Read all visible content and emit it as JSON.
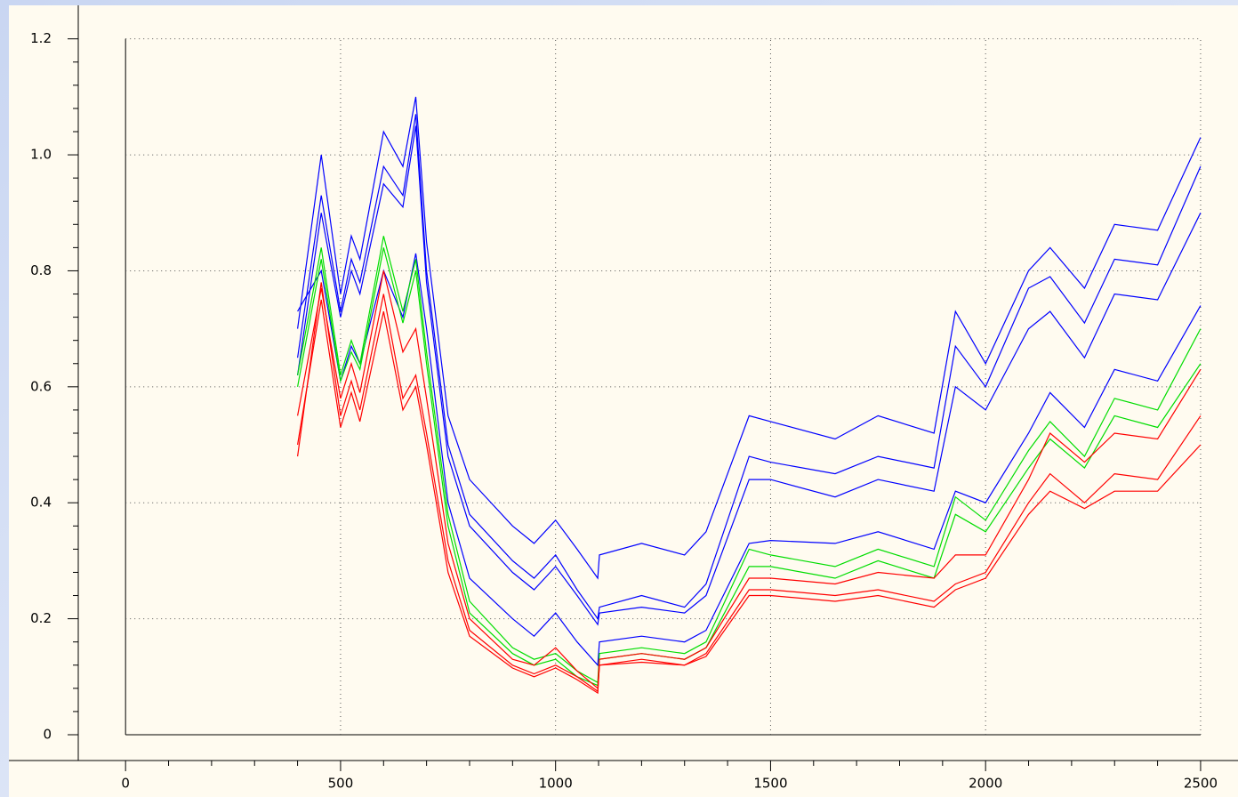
{
  "chart_data": {
    "type": "line",
    "x": [
      400,
      455,
      500,
      525,
      545,
      600,
      645,
      675,
      700,
      750,
      800,
      900,
      950,
      1000,
      1050,
      1098,
      1102,
      1200,
      1300,
      1350,
      1450,
      1500,
      1650,
      1750,
      1880,
      1930,
      2000,
      2100,
      2150,
      2230,
      2300,
      2400,
      2500
    ],
    "series": [
      {
        "color": "#0000ff",
        "values": [
          0.7,
          1.0,
          0.76,
          0.86,
          0.82,
          1.04,
          0.98,
          1.1,
          0.85,
          0.55,
          0.44,
          0.36,
          0.33,
          0.37,
          0.32,
          0.27,
          0.31,
          0.33,
          0.31,
          0.35,
          0.55,
          0.54,
          0.51,
          0.55,
          0.52,
          0.73,
          0.64,
          0.8,
          0.84,
          0.77,
          0.88,
          0.87,
          1.03
        ]
      },
      {
        "color": "#0000ff",
        "values": [
          0.65,
          0.93,
          0.73,
          0.82,
          0.78,
          0.98,
          0.93,
          1.07,
          0.8,
          0.5,
          0.38,
          0.3,
          0.27,
          0.31,
          0.25,
          0.2,
          0.22,
          0.24,
          0.22,
          0.26,
          0.48,
          0.47,
          0.45,
          0.48,
          0.46,
          0.67,
          0.6,
          0.77,
          0.79,
          0.71,
          0.82,
          0.81,
          0.98
        ]
      },
      {
        "color": "#0000ff",
        "values": [
          0.62,
          0.9,
          0.72,
          0.8,
          0.76,
          0.95,
          0.91,
          1.05,
          0.78,
          0.48,
          0.36,
          0.28,
          0.25,
          0.29,
          0.24,
          0.19,
          0.21,
          0.22,
          0.21,
          0.24,
          0.44,
          0.44,
          0.41,
          0.44,
          0.42,
          0.6,
          0.56,
          0.7,
          0.73,
          0.65,
          0.76,
          0.75,
          0.9
        ]
      },
      {
        "color": "#0000ff",
        "values": [
          0.73,
          0.8,
          0.61,
          0.67,
          0.64,
          0.8,
          0.72,
          0.83,
          0.7,
          0.4,
          0.27,
          0.2,
          0.17,
          0.21,
          0.16,
          0.12,
          0.16,
          0.17,
          0.16,
          0.18,
          0.33,
          0.335,
          0.33,
          0.35,
          0.32,
          0.42,
          0.4,
          0.52,
          0.59,
          0.53,
          0.63,
          0.61,
          0.74
        ]
      },
      {
        "color": "#00dd00",
        "values": [
          0.62,
          0.84,
          0.62,
          0.68,
          0.64,
          0.86,
          0.73,
          0.82,
          0.66,
          0.38,
          0.23,
          0.15,
          0.13,
          0.14,
          0.11,
          0.09,
          0.14,
          0.15,
          0.14,
          0.16,
          0.32,
          0.31,
          0.29,
          0.32,
          0.29,
          0.41,
          0.37,
          0.49,
          0.54,
          0.48,
          0.58,
          0.56,
          0.7
        ]
      },
      {
        "color": "#00dd00",
        "values": [
          0.6,
          0.82,
          0.61,
          0.66,
          0.63,
          0.84,
          0.71,
          0.8,
          0.64,
          0.36,
          0.21,
          0.14,
          0.12,
          0.13,
          0.1,
          0.085,
          0.13,
          0.14,
          0.13,
          0.15,
          0.29,
          0.29,
          0.27,
          0.3,
          0.27,
          0.38,
          0.35,
          0.46,
          0.51,
          0.46,
          0.55,
          0.53,
          0.64
        ]
      },
      {
        "color": "#ff0000",
        "values": [
          0.48,
          0.78,
          0.55,
          0.61,
          0.56,
          0.76,
          0.58,
          0.62,
          0.52,
          0.3,
          0.18,
          0.12,
          0.105,
          0.12,
          0.1,
          0.075,
          0.12,
          0.13,
          0.12,
          0.14,
          0.25,
          0.25,
          0.24,
          0.25,
          0.23,
          0.26,
          0.28,
          0.4,
          0.45,
          0.4,
          0.45,
          0.44,
          0.55
        ]
      },
      {
        "color": "#ff0000",
        "values": [
          0.5,
          0.75,
          0.53,
          0.59,
          0.54,
          0.73,
          0.56,
          0.6,
          0.5,
          0.28,
          0.17,
          0.115,
          0.1,
          0.115,
          0.095,
          0.072,
          0.12,
          0.125,
          0.12,
          0.135,
          0.24,
          0.24,
          0.23,
          0.24,
          0.22,
          0.25,
          0.27,
          0.38,
          0.42,
          0.39,
          0.42,
          0.42,
          0.5
        ]
      },
      {
        "color": "#ff0000",
        "values": [
          0.55,
          0.77,
          0.58,
          0.64,
          0.59,
          0.8,
          0.66,
          0.7,
          0.58,
          0.33,
          0.2,
          0.13,
          0.12,
          0.15,
          0.11,
          0.08,
          0.13,
          0.14,
          0.13,
          0.15,
          0.27,
          0.27,
          0.26,
          0.28,
          0.27,
          0.31,
          0.31,
          0.44,
          0.52,
          0.47,
          0.52,
          0.51,
          0.63
        ]
      }
    ],
    "xlim": [
      -110,
      2587
    ],
    "ylim": [
      -0.0445,
      1.267
    ],
    "xticks": [
      0,
      500,
      1000,
      1500,
      2000,
      2500
    ],
    "yticks": [
      0,
      0.2,
      0.4,
      0.6,
      {
        "value": 1.0,
        "label": "1.0"
      },
      0.8,
      1.2
    ],
    "grid": true
  }
}
